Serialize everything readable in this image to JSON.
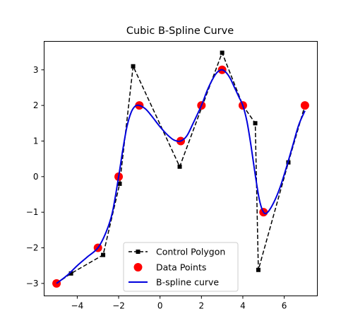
{
  "chart_data": {
    "type": "line",
    "title": "Cubic B-Spline Curve",
    "xlabel": "",
    "ylabel": "",
    "xlim": [
      -5.6,
      7.6
    ],
    "ylim": [
      -3.35,
      3.8
    ],
    "xticks": [
      -4,
      -2,
      0,
      2,
      4,
      6
    ],
    "yticks": [
      -3,
      -2,
      -1,
      0,
      1,
      2,
      3
    ],
    "grid": false,
    "legend_position": "lower-center",
    "series": [
      {
        "name": "Control Polygon",
        "style": "dashed-square-markers",
        "color": "#000000",
        "x": [
          -5.0,
          -4.3,
          -2.75,
          -1.95,
          -1.3,
          0.95,
          2.05,
          3.0,
          4.0,
          4.6,
          4.75,
          6.2,
          7.0
        ],
        "y": [
          -3.0,
          -2.72,
          -2.2,
          -0.2,
          3.1,
          0.28,
          2.0,
          3.48,
          2.0,
          1.5,
          -2.62,
          0.4,
          2.0
        ]
      },
      {
        "name": "Data Points",
        "style": "scatter",
        "color": "#ff0000",
        "x": [
          -5,
          -3,
          -2,
          -1,
          1,
          2,
          3,
          4,
          5,
          7
        ],
        "y": [
          -3,
          -2,
          0,
          2,
          1,
          2,
          3,
          2,
          -1,
          2
        ]
      },
      {
        "name": "B-spline curve",
        "style": "solid-line",
        "color": "#0000dd",
        "x": [
          -5.0,
          -4.5,
          -4.0,
          -3.5,
          -3.0,
          -2.6,
          -2.3,
          -2.0,
          -1.8,
          -1.6,
          -1.4,
          -1.2,
          -1.0,
          -0.7,
          -0.4,
          0.0,
          0.4,
          0.7,
          1.0,
          1.3,
          1.6,
          2.0,
          2.3,
          2.6,
          2.8,
          3.0,
          3.2,
          3.4,
          3.6,
          3.8,
          4.0,
          4.2,
          4.4,
          4.6,
          4.8,
          5.0,
          5.2,
          5.5,
          5.8,
          6.1,
          6.4,
          6.7,
          7.0
        ],
        "y": [
          -3.0,
          -2.78,
          -2.5,
          -2.25,
          -2.0,
          -1.55,
          -1.0,
          0.0,
          0.75,
          1.4,
          1.8,
          1.98,
          2.0,
          1.9,
          1.7,
          1.4,
          1.15,
          1.02,
          1.0,
          1.15,
          1.5,
          2.0,
          2.45,
          2.8,
          2.95,
          3.0,
          2.92,
          2.75,
          2.5,
          2.25,
          2.0,
          1.55,
          0.85,
          0.05,
          -0.65,
          -1.0,
          -1.0,
          -0.72,
          -0.3,
          0.25,
          0.85,
          1.45,
          1.85
        ]
      }
    ]
  }
}
